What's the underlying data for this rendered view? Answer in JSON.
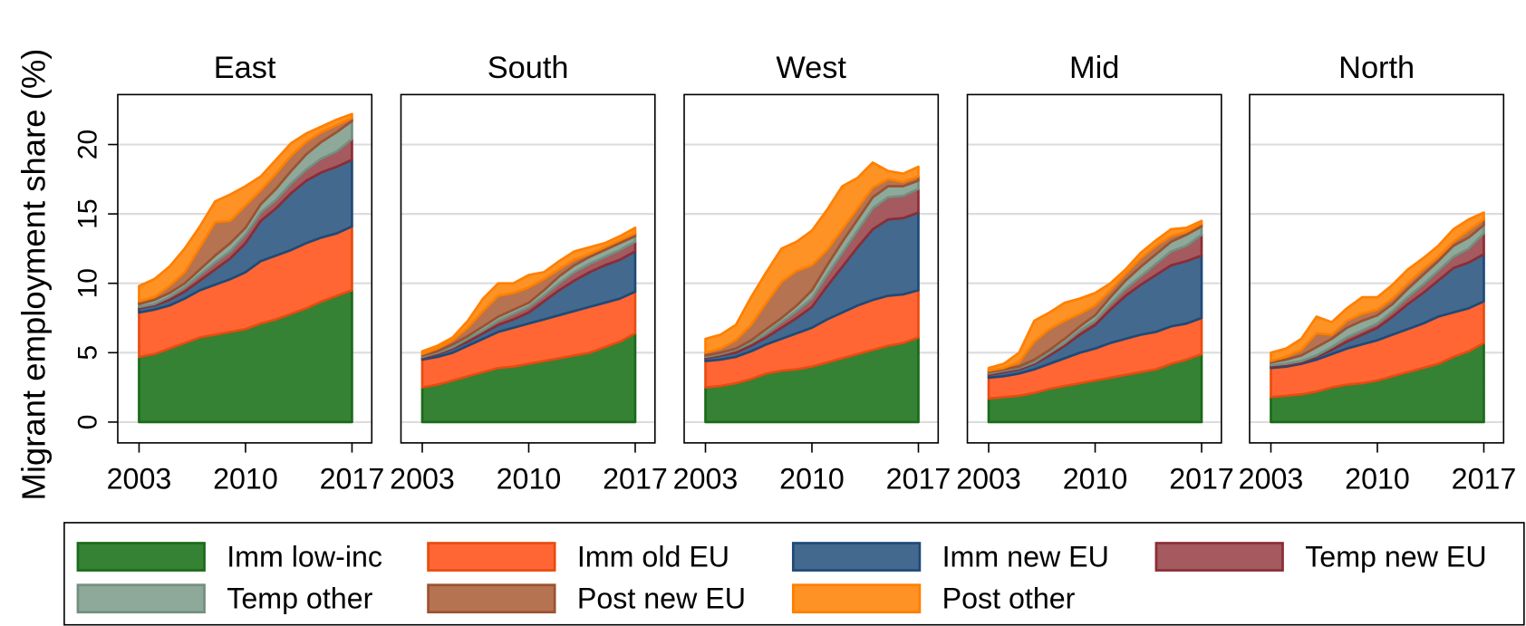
{
  "y_label": "Migrant employment share (%)",
  "legend": [
    {
      "name": "Imm low-inc",
      "color": "#358234",
      "edge": "#1a6b1a"
    },
    {
      "name": "Imm old EU",
      "color": "#ff6633",
      "edge": "#e84c10"
    },
    {
      "name": "Imm new EU",
      "color": "#44698f",
      "edge": "#1f4a78"
    },
    {
      "name": "Temp new EU",
      "color": "#a45a5f",
      "edge": "#8b2d35"
    },
    {
      "name": "Temp other",
      "color": "#8ea89a",
      "edge": "#738f80"
    },
    {
      "name": "Post new EU",
      "color": "#b57352",
      "edge": "#9c5230"
    },
    {
      "name": "Post other",
      "color": "#ff9224",
      "edge": "#ff7f00"
    }
  ],
  "chart_data": [
    {
      "type": "stacked_area",
      "title": "East",
      "x": [
        2003,
        2004,
        2005,
        2006,
        2007,
        2008,
        2009,
        2010,
        2011,
        2012,
        2013,
        2014,
        2015,
        2016,
        2017
      ],
      "xlim": [
        2001.6,
        2018.3
      ],
      "xticks": [
        2003,
        2010,
        2017
      ],
      "ylim": [
        -1.5,
        23.6
      ],
      "yticks": [
        0,
        5,
        10,
        15,
        20
      ],
      "grid": true,
      "series": [
        {
          "values": [
            4.7,
            4.9,
            5.3,
            5.7,
            6.1,
            6.3,
            6.5,
            6.7,
            7.1,
            7.4,
            7.8,
            8.2,
            8.7,
            9.1,
            9.5
          ]
        },
        {
          "values": [
            3.2,
            3.2,
            3.1,
            3.2,
            3.4,
            3.6,
            3.8,
            4.1,
            4.5,
            4.6,
            4.6,
            4.7,
            4.6,
            4.5,
            4.6
          ]
        },
        {
          "values": [
            0.3,
            0.3,
            0.4,
            0.5,
            0.7,
            1.1,
            1.5,
            2.1,
            2.9,
            3.4,
            4.1,
            4.5,
            4.7,
            4.8,
            4.8
          ]
        },
        {
          "values": [
            0.1,
            0.1,
            0.2,
            0.3,
            0.4,
            0.5,
            0.5,
            0.6,
            0.6,
            0.6,
            0.7,
            0.8,
            1.0,
            1.1,
            1.5
          ]
        },
        {
          "values": [
            0.2,
            0.3,
            0.3,
            0.3,
            0.4,
            0.5,
            0.6,
            0.5,
            0.6,
            0.8,
            0.9,
            1.1,
            1.2,
            1.4,
            1.3
          ]
        },
        {
          "values": [
            0.2,
            0.2,
            0.5,
            0.8,
            1.6,
            2.4,
            1.6,
            1.6,
            1.0,
            1.1,
            1.1,
            0.9,
            0.7,
            0.5,
            0.2
          ]
        },
        {
          "values": [
            1.1,
            1.3,
            1.4,
            1.7,
            1.5,
            1.5,
            1.9,
            1.4,
            1.0,
            1.0,
            0.9,
            0.6,
            0.4,
            0.4,
            0.3
          ]
        }
      ]
    },
    {
      "type": "stacked_area",
      "title": "South",
      "x": [
        2003,
        2004,
        2005,
        2006,
        2007,
        2008,
        2009,
        2010,
        2011,
        2012,
        2013,
        2014,
        2015,
        2016,
        2017
      ],
      "xlim": [
        2001.6,
        2018.3
      ],
      "xticks": [
        2003,
        2010,
        2017
      ],
      "ylim": [
        -1.5,
        23.6
      ],
      "yticks": [
        0,
        5,
        10,
        15,
        20
      ],
      "grid": true,
      "series": [
        {
          "values": [
            2.5,
            2.7,
            3.0,
            3.3,
            3.6,
            3.9,
            4.0,
            4.2,
            4.4,
            4.6,
            4.8,
            5.0,
            5.4,
            5.8,
            6.4
          ]
        },
        {
          "values": [
            2.0,
            2.0,
            2.0,
            2.2,
            2.4,
            2.6,
            2.8,
            2.9,
            3.0,
            3.1,
            3.2,
            3.3,
            3.2,
            3.1,
            3.0
          ]
        },
        {
          "values": [
            0.1,
            0.2,
            0.3,
            0.3,
            0.4,
            0.5,
            0.6,
            0.8,
            1.3,
            1.8,
            2.2,
            2.5,
            2.7,
            2.8,
            2.9
          ]
        },
        {
          "values": [
            0.1,
            0.1,
            0.1,
            0.2,
            0.2,
            0.3,
            0.4,
            0.4,
            0.4,
            0.5,
            0.6,
            0.6,
            0.6,
            0.7,
            0.7
          ]
        },
        {
          "values": [
            0.1,
            0.1,
            0.2,
            0.2,
            0.3,
            0.3,
            0.3,
            0.3,
            0.4,
            0.5,
            0.5,
            0.5,
            0.5,
            0.5,
            0.4
          ]
        },
        {
          "values": [
            0.1,
            0.2,
            0.3,
            0.6,
            1.1,
            1.5,
            1.2,
            1.1,
            0.8,
            0.5,
            0.4,
            0.2,
            0.2,
            0.2,
            0.2
          ]
        },
        {
          "values": [
            0.2,
            0.2,
            0.2,
            0.5,
            0.9,
            0.9,
            0.7,
            0.9,
            0.5,
            0.6,
            0.6,
            0.5,
            0.3,
            0.3,
            0.4
          ]
        }
      ]
    },
    {
      "type": "stacked_area",
      "title": "West",
      "x": [
        2003,
        2004,
        2005,
        2006,
        2007,
        2008,
        2009,
        2010,
        2011,
        2012,
        2013,
        2014,
        2015,
        2016,
        2017
      ],
      "xlim": [
        2001.6,
        2018.3
      ],
      "xticks": [
        2003,
        2010,
        2017
      ],
      "ylim": [
        -1.5,
        23.6
      ],
      "yticks": [
        0,
        5,
        10,
        15,
        20
      ],
      "grid": true,
      "series": [
        {
          "values": [
            2.5,
            2.6,
            2.8,
            3.1,
            3.5,
            3.7,
            3.8,
            4.0,
            4.3,
            4.6,
            4.9,
            5.2,
            5.5,
            5.7,
            6.1
          ]
        },
        {
          "values": [
            1.9,
            1.9,
            1.9,
            2.0,
            2.1,
            2.3,
            2.6,
            2.8,
            3.1,
            3.3,
            3.5,
            3.6,
            3.6,
            3.5,
            3.4
          ]
        },
        {
          "values": [
            0.2,
            0.3,
            0.3,
            0.4,
            0.5,
            0.8,
            1.1,
            1.5,
            2.4,
            3.3,
            4.2,
            5.1,
            5.5,
            5.5,
            5.6
          ]
        },
        {
          "values": [
            0.1,
            0.1,
            0.2,
            0.2,
            0.3,
            0.4,
            0.5,
            0.6,
            0.8,
            1.0,
            1.2,
            1.5,
            1.6,
            1.6,
            1.7
          ]
        },
        {
          "values": [
            0.1,
            0.1,
            0.1,
            0.2,
            0.3,
            0.3,
            0.4,
            0.6,
            0.7,
            0.8,
            0.8,
            0.8,
            0.8,
            0.7,
            0.6
          ]
        },
        {
          "values": [
            0.2,
            0.3,
            0.6,
            1.1,
            1.9,
            2.6,
            2.5,
            1.8,
            1.1,
            0.9,
            0.8,
            0.7,
            0.5,
            0.3,
            0.3
          ]
        },
        {
          "values": [
            1.0,
            1.0,
            1.1,
            2.0,
            2.2,
            2.4,
            2.1,
            2.5,
            2.9,
            3.1,
            2.2,
            1.8,
            0.6,
            0.6,
            0.7
          ]
        }
      ]
    },
    {
      "type": "stacked_area",
      "title": "Mid",
      "x": [
        2003,
        2004,
        2005,
        2006,
        2007,
        2008,
        2009,
        2010,
        2011,
        2012,
        2013,
        2014,
        2015,
        2016,
        2017
      ],
      "xlim": [
        2001.6,
        2018.3
      ],
      "xticks": [
        2003,
        2010,
        2017
      ],
      "ylim": [
        -1.5,
        23.6
      ],
      "yticks": [
        0,
        5,
        10,
        15,
        20
      ],
      "grid": true,
      "series": [
        {
          "values": [
            1.7,
            1.8,
            1.9,
            2.1,
            2.4,
            2.6,
            2.8,
            3.0,
            3.2,
            3.4,
            3.6,
            3.8,
            4.2,
            4.5,
            4.9
          ]
        },
        {
          "values": [
            1.5,
            1.5,
            1.6,
            1.7,
            1.8,
            2.0,
            2.2,
            2.3,
            2.5,
            2.6,
            2.7,
            2.7,
            2.7,
            2.6,
            2.6
          ]
        },
        {
          "values": [
            0.2,
            0.3,
            0.3,
            0.4,
            0.6,
            0.9,
            1.3,
            1.7,
            2.4,
            3.1,
            3.6,
            4.1,
            4.4,
            4.5,
            4.5
          ]
        },
        {
          "values": [
            0.1,
            0.1,
            0.1,
            0.1,
            0.2,
            0.2,
            0.3,
            0.3,
            0.4,
            0.5,
            0.6,
            0.8,
            1.0,
            1.1,
            1.5
          ]
        },
        {
          "values": [
            0.1,
            0.1,
            0.1,
            0.2,
            0.2,
            0.3,
            0.3,
            0.4,
            0.5,
            0.6,
            0.7,
            0.7,
            0.7,
            0.8,
            0.6
          ]
        },
        {
          "values": [
            0.1,
            0.1,
            0.3,
            1.3,
            1.5,
            1.3,
            0.9,
            0.7,
            0.5,
            0.5,
            0.6,
            0.6,
            0.4,
            0.2,
            0.2
          ]
        },
        {
          "values": [
            0.2,
            0.3,
            0.7,
            1.5,
            1.2,
            1.3,
            1.1,
            0.9,
            0.5,
            0.3,
            0.4,
            0.4,
            0.5,
            0.3,
            0.2
          ]
        }
      ]
    },
    {
      "type": "stacked_area",
      "title": "North",
      "x": [
        2003,
        2004,
        2005,
        2006,
        2007,
        2008,
        2009,
        2010,
        2011,
        2012,
        2013,
        2014,
        2015,
        2016,
        2017
      ],
      "xlim": [
        2001.6,
        2018.3
      ],
      "xticks": [
        2003,
        2010,
        2017
      ],
      "ylim": [
        -1.5,
        23.6
      ],
      "yticks": [
        0,
        5,
        10,
        15,
        20
      ],
      "grid": true,
      "series": [
        {
          "values": [
            1.8,
            1.9,
            2.0,
            2.2,
            2.5,
            2.7,
            2.8,
            3.0,
            3.3,
            3.6,
            3.9,
            4.2,
            4.7,
            5.1,
            5.7
          ]
        },
        {
          "values": [
            2.1,
            2.1,
            2.2,
            2.3,
            2.4,
            2.6,
            2.8,
            2.9,
            3.0,
            3.1,
            3.2,
            3.4,
            3.2,
            3.1,
            3.0
          ]
        },
        {
          "values": [
            0.1,
            0.1,
            0.1,
            0.2,
            0.3,
            0.5,
            0.7,
            0.9,
            1.3,
            1.8,
            2.2,
            2.6,
            3.2,
            3.3,
            3.4
          ]
        },
        {
          "values": [
            0.1,
            0.1,
            0.1,
            0.1,
            0.2,
            0.3,
            0.3,
            0.3,
            0.4,
            0.5,
            0.6,
            0.7,
            0.8,
            1.0,
            1.5
          ]
        },
        {
          "values": [
            0.2,
            0.3,
            0.4,
            0.6,
            0.6,
            0.7,
            0.7,
            0.6,
            0.5,
            0.6,
            0.7,
            0.7,
            0.8,
            0.8,
            0.6
          ]
        },
        {
          "values": [
            0.1,
            0.2,
            0.4,
            1.0,
            0.3,
            0.5,
            0.5,
            0.4,
            0.4,
            0.4,
            0.4,
            0.3,
            0.3,
            0.5,
            0.4
          ]
        },
        {
          "values": [
            0.6,
            0.6,
            0.8,
            1.2,
            0.9,
            0.9,
            1.2,
            0.9,
            1.0,
            1.0,
            0.8,
            0.8,
            0.9,
            0.8,
            0.5
          ]
        }
      ]
    }
  ]
}
